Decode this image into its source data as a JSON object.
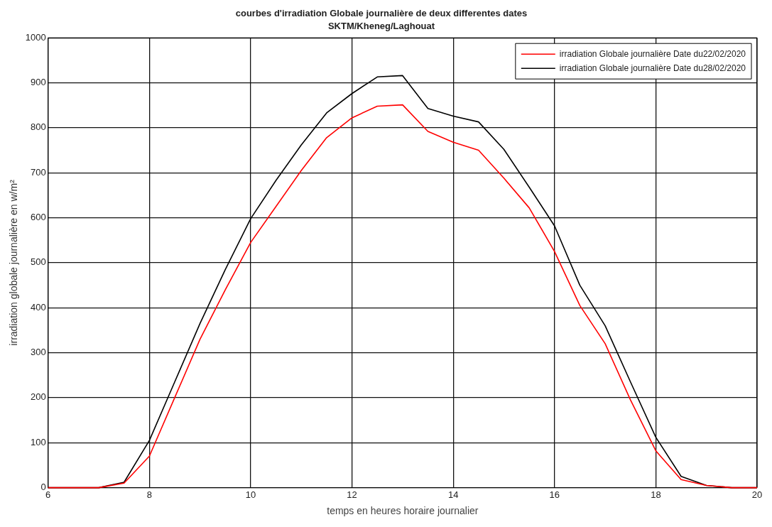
{
  "chart_data": {
    "type": "line",
    "title": "courbes d'irradiation Globale journalière de deux differentes dates",
    "subtitle": "SKTM/Kheneg/Laghouat",
    "xlabel": "temps en heures horaire journalier",
    "ylabel": "irradiation globale journalière en w/m²",
    "x": [
      6,
      6.5,
      7,
      7.5,
      8,
      8.5,
      9,
      9.5,
      10,
      10.5,
      11,
      11.5,
      12,
      12.5,
      13,
      13.5,
      14,
      14.5,
      15,
      15.5,
      16,
      16.5,
      17,
      17.5,
      18,
      18.5,
      19,
      19.5,
      20
    ],
    "series": [
      {
        "name": "irradiation Globale journalière Date du22/02/2020",
        "color": "#ff0000",
        "values": [
          0,
          0,
          0,
          10,
          70,
          200,
          330,
          440,
          545,
          625,
          705,
          778,
          822,
          848,
          851,
          792,
          768,
          750,
          688,
          622,
          525,
          405,
          320,
          195,
          82,
          18,
          5,
          0,
          0
        ]
      },
      {
        "name": "irradiation Globale journalière Date du28/02/2020",
        "color": "#000000",
        "values": [
          0,
          0,
          0,
          12,
          105,
          235,
          365,
          485,
          598,
          683,
          762,
          833,
          876,
          913,
          916,
          843,
          826,
          813,
          752,
          668,
          582,
          450,
          360,
          235,
          112,
          25,
          5,
          0,
          0
        ]
      }
    ],
    "xlim": [
      6,
      20
    ],
    "xticks": [
      6,
      8,
      10,
      12,
      14,
      16,
      18,
      20
    ],
    "ylim": [
      0,
      1000
    ],
    "yticks": [
      0,
      100,
      200,
      300,
      400,
      500,
      600,
      700,
      800,
      900,
      1000
    ],
    "grid": true,
    "legend": "top right",
    "marker": "none",
    "line_style": "solid"
  }
}
